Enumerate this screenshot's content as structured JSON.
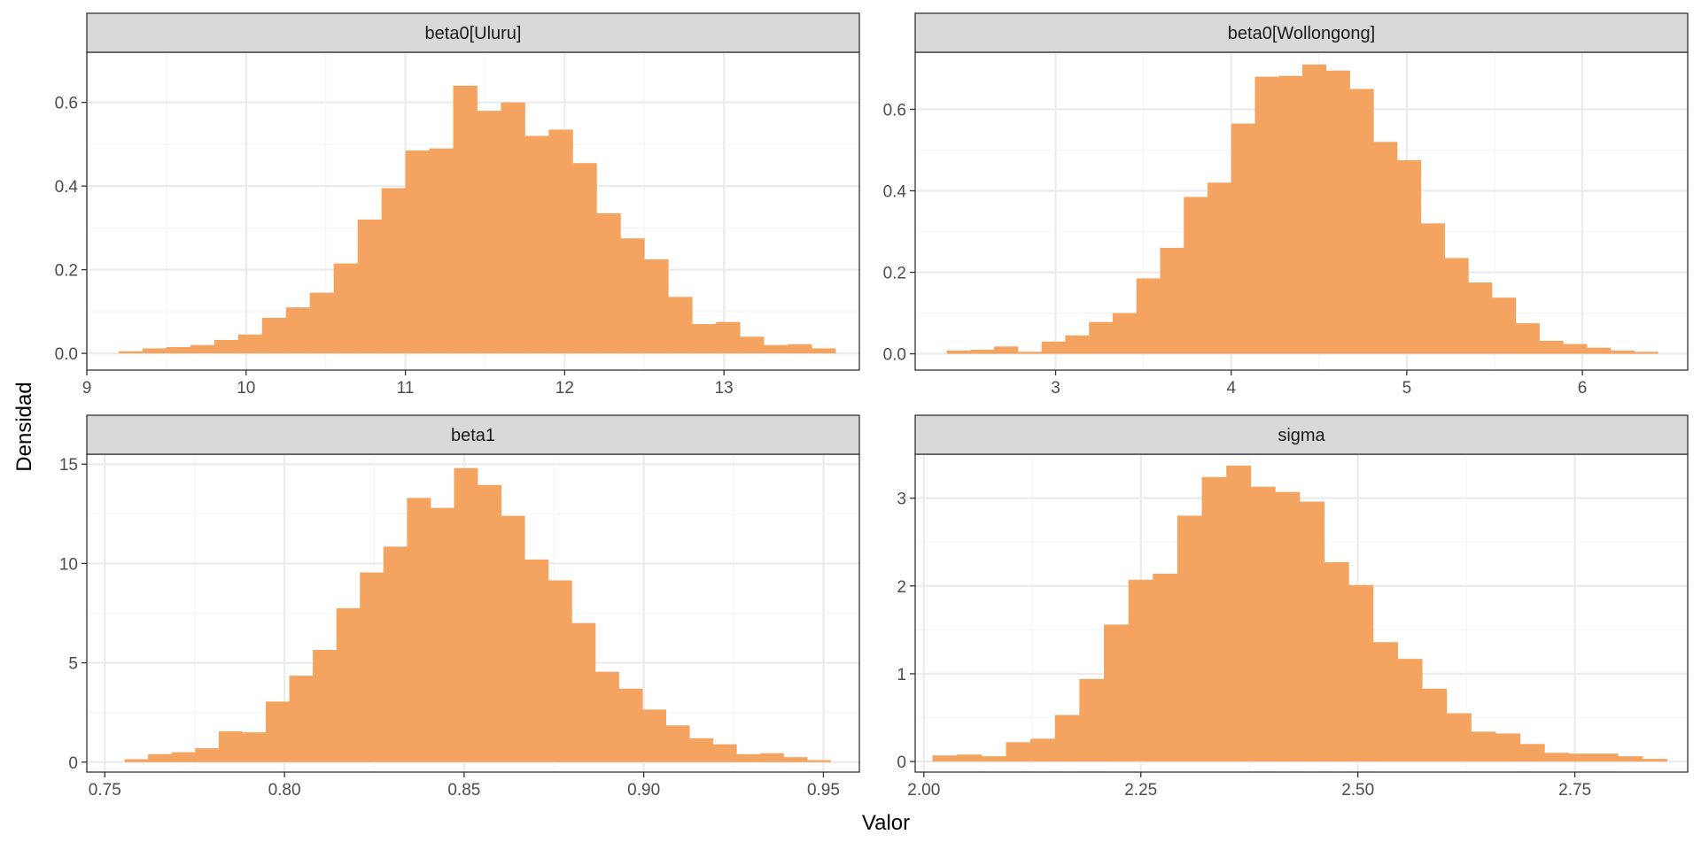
{
  "figure": {
    "xlabel": "Valor",
    "ylabel": "Densidad"
  },
  "colors": {
    "bar_fill": "#f4a460",
    "strip_fill": "#d9d9d9",
    "grid_major": "#ebebeb",
    "grid_minor": "#f5f5f5",
    "panel_border": "#333333"
  },
  "chart_data": [
    {
      "type": "bar",
      "title": "beta0[Uluru]",
      "xlim": [
        9.0,
        13.85
      ],
      "ylim": [
        -0.04,
        0.72
      ],
      "xticks": [
        9,
        10,
        11,
        12,
        13
      ],
      "xtick_labels": [
        "9",
        "10",
        "11",
        "12",
        "13"
      ],
      "yticks": [
        0.0,
        0.2,
        0.4,
        0.6
      ],
      "ytick_labels": [
        "0.0",
        "0.2",
        "0.4",
        "0.6"
      ],
      "bin_start": 9.2,
      "bin_width": 0.15,
      "values": [
        0.005,
        0.012,
        0.015,
        0.02,
        0.032,
        0.045,
        0.085,
        0.11,
        0.145,
        0.215,
        0.32,
        0.395,
        0.485,
        0.49,
        0.64,
        0.58,
        0.6,
        0.52,
        0.535,
        0.455,
        0.335,
        0.275,
        0.225,
        0.135,
        0.07,
        0.075,
        0.04,
        0.02,
        0.022,
        0.012
      ]
    },
    {
      "type": "bar",
      "title": "beta0[Wollongong]",
      "xlim": [
        2.2,
        6.6
      ],
      "ylim": [
        -0.04,
        0.74
      ],
      "xticks": [
        3,
        4,
        5,
        6
      ],
      "xtick_labels": [
        "3",
        "4",
        "5",
        "6"
      ],
      "yticks": [
        0.0,
        0.2,
        0.4,
        0.6
      ],
      "ytick_labels": [
        "0.0",
        "0.2",
        "0.4",
        "0.6"
      ],
      "bin_start": 2.38,
      "bin_width": 0.135,
      "values": [
        0.008,
        0.01,
        0.018,
        0.005,
        0.03,
        0.045,
        0.078,
        0.1,
        0.185,
        0.26,
        0.385,
        0.42,
        0.565,
        0.68,
        0.682,
        0.71,
        0.695,
        0.65,
        0.52,
        0.475,
        0.32,
        0.235,
        0.175,
        0.138,
        0.075,
        0.032,
        0.024,
        0.015,
        0.008,
        0.005
      ]
    },
    {
      "type": "bar",
      "title": "beta1",
      "xlim": [
        0.745,
        0.96
      ],
      "ylim": [
        -0.5,
        15.5
      ],
      "xticks": [
        0.75,
        0.8,
        0.85,
        0.9,
        0.95
      ],
      "xtick_labels": [
        "0.75",
        "0.80",
        "0.85",
        "0.90",
        "0.95"
      ],
      "yticks": [
        0,
        5,
        10,
        15
      ],
      "ytick_labels": [
        "0",
        "5",
        "10",
        "15"
      ],
      "bin_start": 0.7555,
      "bin_width": 0.00655,
      "values": [
        0.15,
        0.4,
        0.5,
        0.7,
        1.55,
        1.5,
        3.05,
        4.35,
        5.65,
        7.75,
        9.55,
        10.85,
        13.3,
        12.8,
        14.8,
        13.95,
        12.4,
        10.2,
        9.15,
        7.0,
        4.55,
        3.7,
        2.65,
        1.85,
        1.2,
        0.9,
        0.4,
        0.45,
        0.25,
        0.1
      ]
    },
    {
      "type": "bar",
      "title": "sigma",
      "xlim": [
        1.99,
        2.88
      ],
      "ylim": [
        -0.12,
        3.5
      ],
      "xticks": [
        2.0,
        2.25,
        2.5,
        2.75
      ],
      "xtick_labels": [
        "2.00",
        "2.25",
        "2.50",
        "2.75"
      ],
      "yticks": [
        0,
        1,
        2,
        3
      ],
      "ytick_labels": [
        "0",
        "1",
        "2",
        "3"
      ],
      "bin_start": 2.01,
      "bin_width": 0.0282,
      "values": [
        0.07,
        0.08,
        0.06,
        0.22,
        0.26,
        0.53,
        0.94,
        1.56,
        2.07,
        2.14,
        2.8,
        3.24,
        3.37,
        3.13,
        3.07,
        2.96,
        2.27,
        2.01,
        1.36,
        1.17,
        0.83,
        0.55,
        0.34,
        0.32,
        0.2,
        0.1,
        0.09,
        0.09,
        0.06,
        0.03
      ]
    }
  ]
}
